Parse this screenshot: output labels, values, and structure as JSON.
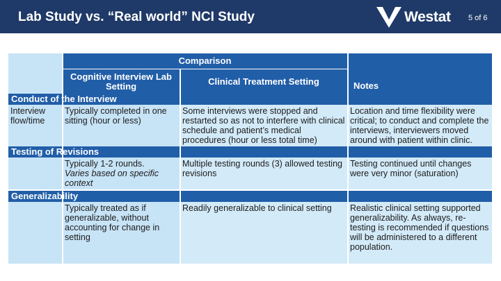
{
  "header": {
    "title": "Lab Study vs. “Real world” NCI Study",
    "logo_text": "Westat",
    "page_indicator": "5 of 6"
  },
  "table": {
    "group_header": "Comparison",
    "col_lab": "Cognitive Interview Lab Setting",
    "col_clinical": "Clinical Treatment Setting",
    "col_notes": "Notes",
    "sections": {
      "conduct": {
        "title": "Conduct of the Interview",
        "row_label": "Interview flow/time",
        "lab": "Typically completed in one sitting (hour or less)",
        "clinical": "Some interviews were stopped and restarted so as not to interfere with clinical schedule and patient’s medical procedures (hour or less total time)",
        "notes": "Location and time flexibility were critical; to conduct and complete the interviews, interviewers moved around with patient within clinic."
      },
      "testing": {
        "title": "Testing of Revisions",
        "row_label": "",
        "lab_main": "Typically 1-2 rounds.",
        "lab_italic": "Varies based on specific context",
        "clinical": "Multiple testing rounds (3) allowed testing revisions",
        "notes": "Testing continued until changes were very minor (saturation)"
      },
      "general": {
        "title": "Generalizability",
        "row_label": "",
        "lab": "Typically treated as if generalizable, without accounting for change in setting",
        "clinical": "Readily generalizable to clinical setting",
        "notes": "Realistic clinical setting supported generalizability. As always, re-testing is recommended if questions will be administered to a different population."
      }
    }
  },
  "colors": {
    "header_bg": "#1f3a68",
    "table_header_bg": "#215ea8",
    "cell_bg": "#c7e3f6"
  }
}
